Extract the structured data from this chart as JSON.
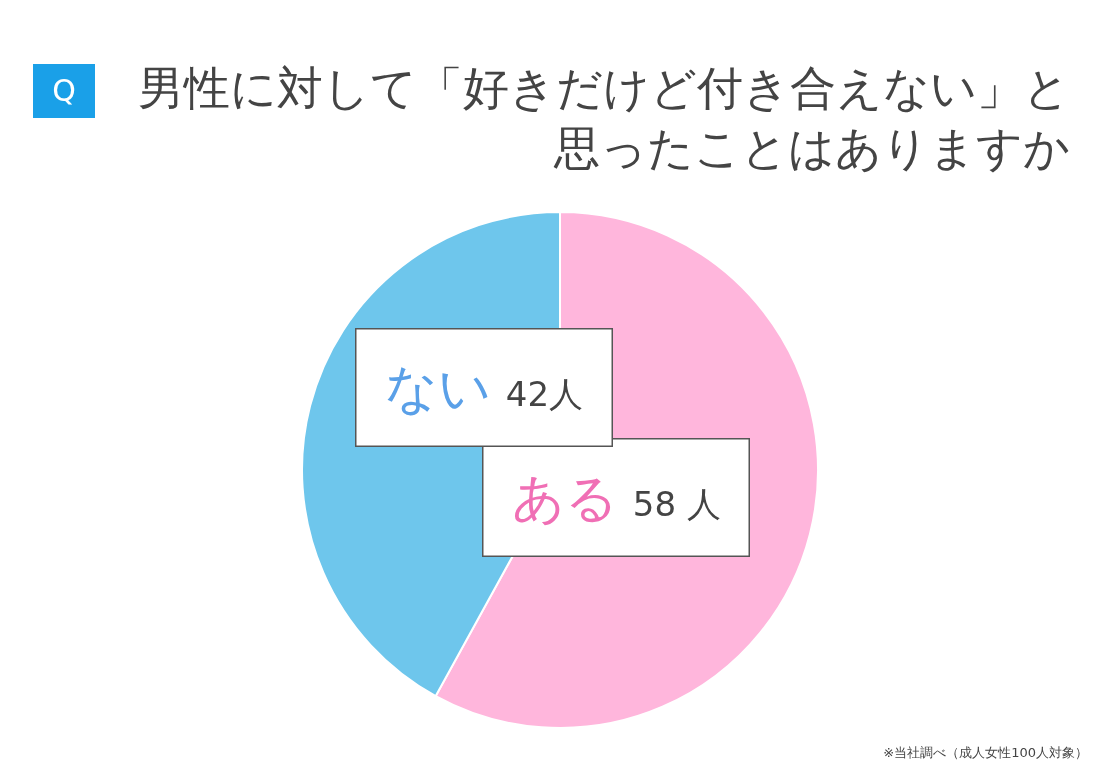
{
  "chart_data": {
    "type": "pie",
    "title": "男性に対して「好きだけど付き合えない」と思ったことはありますか",
    "categories": [
      "ある",
      "ない"
    ],
    "values": [
      58,
      42
    ],
    "colors": [
      "#ffb6dc",
      "#6ec6ec"
    ],
    "value_labels": [
      "58 人",
      "42人"
    ],
    "legend": false,
    "annotations": [
      "Q",
      "※当社調べ（成人女性100人対象）"
    ]
  }
}
